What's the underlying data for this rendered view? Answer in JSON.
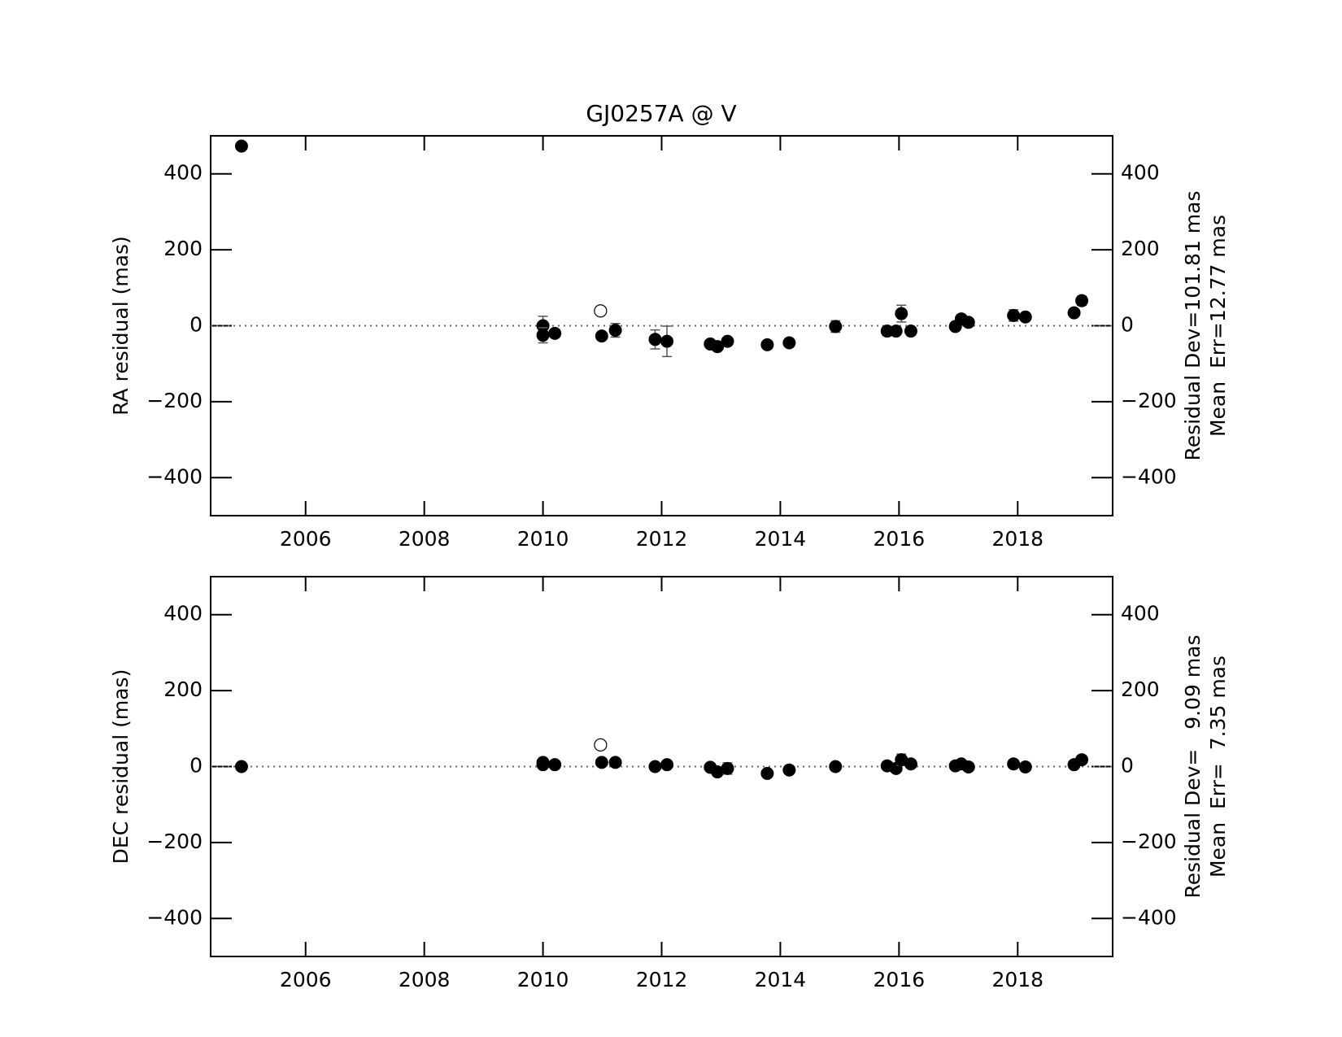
{
  "chart_data": [
    {
      "type": "scatter",
      "title": "GJ0257A @ V",
      "ylabel": "RA residual (mas)",
      "annotations": [
        "Residual Dev=101.81 mas",
        "Mean  Err=12.77 mas"
      ],
      "xlim": [
        2004.4,
        2019.6
      ],
      "xticks": [
        2006,
        2008,
        2010,
        2012,
        2014,
        2016,
        2018
      ],
      "ylim": [
        -500,
        500
      ],
      "yticks": [
        {
          "value": -400,
          "label": "−400"
        },
        {
          "value": -200,
          "label": "−200"
        },
        0,
        200,
        400
      ],
      "reference_line": 0,
      "series": [
        {
          "marker": "filled",
          "color": "#000000",
          "x": [
            2004.92,
            2010.0,
            2010.0,
            2010.2,
            2010.99,
            2011.22,
            2011.89,
            2012.09,
            2012.82,
            2012.94,
            2013.11,
            2013.78,
            2014.15,
            2014.93,
            2015.8,
            2015.95,
            2016.04,
            2016.2,
            2016.95,
            2017.05,
            2017.17,
            2017.93,
            2018.13,
            2018.95,
            2019.08
          ],
          "values": [
            473,
            0,
            -25,
            -20,
            -27,
            -12,
            -36,
            -41,
            -48,
            -55,
            -41,
            -50,
            -45,
            -2,
            -14,
            -14,
            32,
            -14,
            -2,
            18,
            9,
            27,
            23,
            34,
            66
          ],
          "errors": [
            6,
            25,
            20,
            10,
            8,
            18,
            25,
            40,
            8,
            6,
            6,
            10,
            6,
            15,
            12,
            8,
            22,
            8,
            6,
            6,
            6,
            15,
            6,
            6,
            12
          ]
        },
        {
          "marker": "open",
          "color": "#000000",
          "x": [
            2010.97
          ],
          "values": [
            39
          ]
        }
      ]
    },
    {
      "type": "scatter",
      "ylabel": "DEC residual (mas)",
      "annotations": [
        "Residual Dev=   9.09 mas",
        "Mean  Err=  7.35 mas"
      ],
      "xlim": [
        2004.4,
        2019.6
      ],
      "xticks": [
        2006,
        2008,
        2010,
        2012,
        2014,
        2016,
        2018
      ],
      "ylim": [
        -500,
        500
      ],
      "yticks": [
        {
          "value": -400,
          "label": "−400"
        },
        {
          "value": -200,
          "label": "−200"
        },
        0,
        200,
        400
      ],
      "reference_line": 0,
      "series": [
        {
          "marker": "filled",
          "color": "#000000",
          "x": [
            2004.92,
            2010.0,
            2010.0,
            2010.2,
            2010.99,
            2011.22,
            2011.89,
            2012.09,
            2012.82,
            2012.94,
            2013.11,
            2013.78,
            2014.15,
            2014.93,
            2015.8,
            2015.95,
            2016.04,
            2016.2,
            2016.95,
            2017.05,
            2017.17,
            2017.93,
            2018.13,
            2018.95,
            2019.08
          ],
          "values": [
            0,
            11,
            5,
            5,
            11,
            11,
            0,
            5,
            -2,
            -14,
            -5,
            -18,
            -9,
            0,
            2,
            -5,
            18,
            7,
            2,
            7,
            -1,
            7,
            -1,
            5,
            18
          ],
          "errors": [
            6,
            6,
            6,
            6,
            6,
            6,
            6,
            6,
            6,
            6,
            15,
            6,
            6,
            6,
            6,
            6,
            15,
            6,
            6,
            6,
            6,
            6,
            6,
            6,
            6
          ]
        },
        {
          "marker": "open",
          "color": "#000000",
          "x": [
            2010.97
          ],
          "values": [
            57
          ]
        }
      ]
    }
  ]
}
